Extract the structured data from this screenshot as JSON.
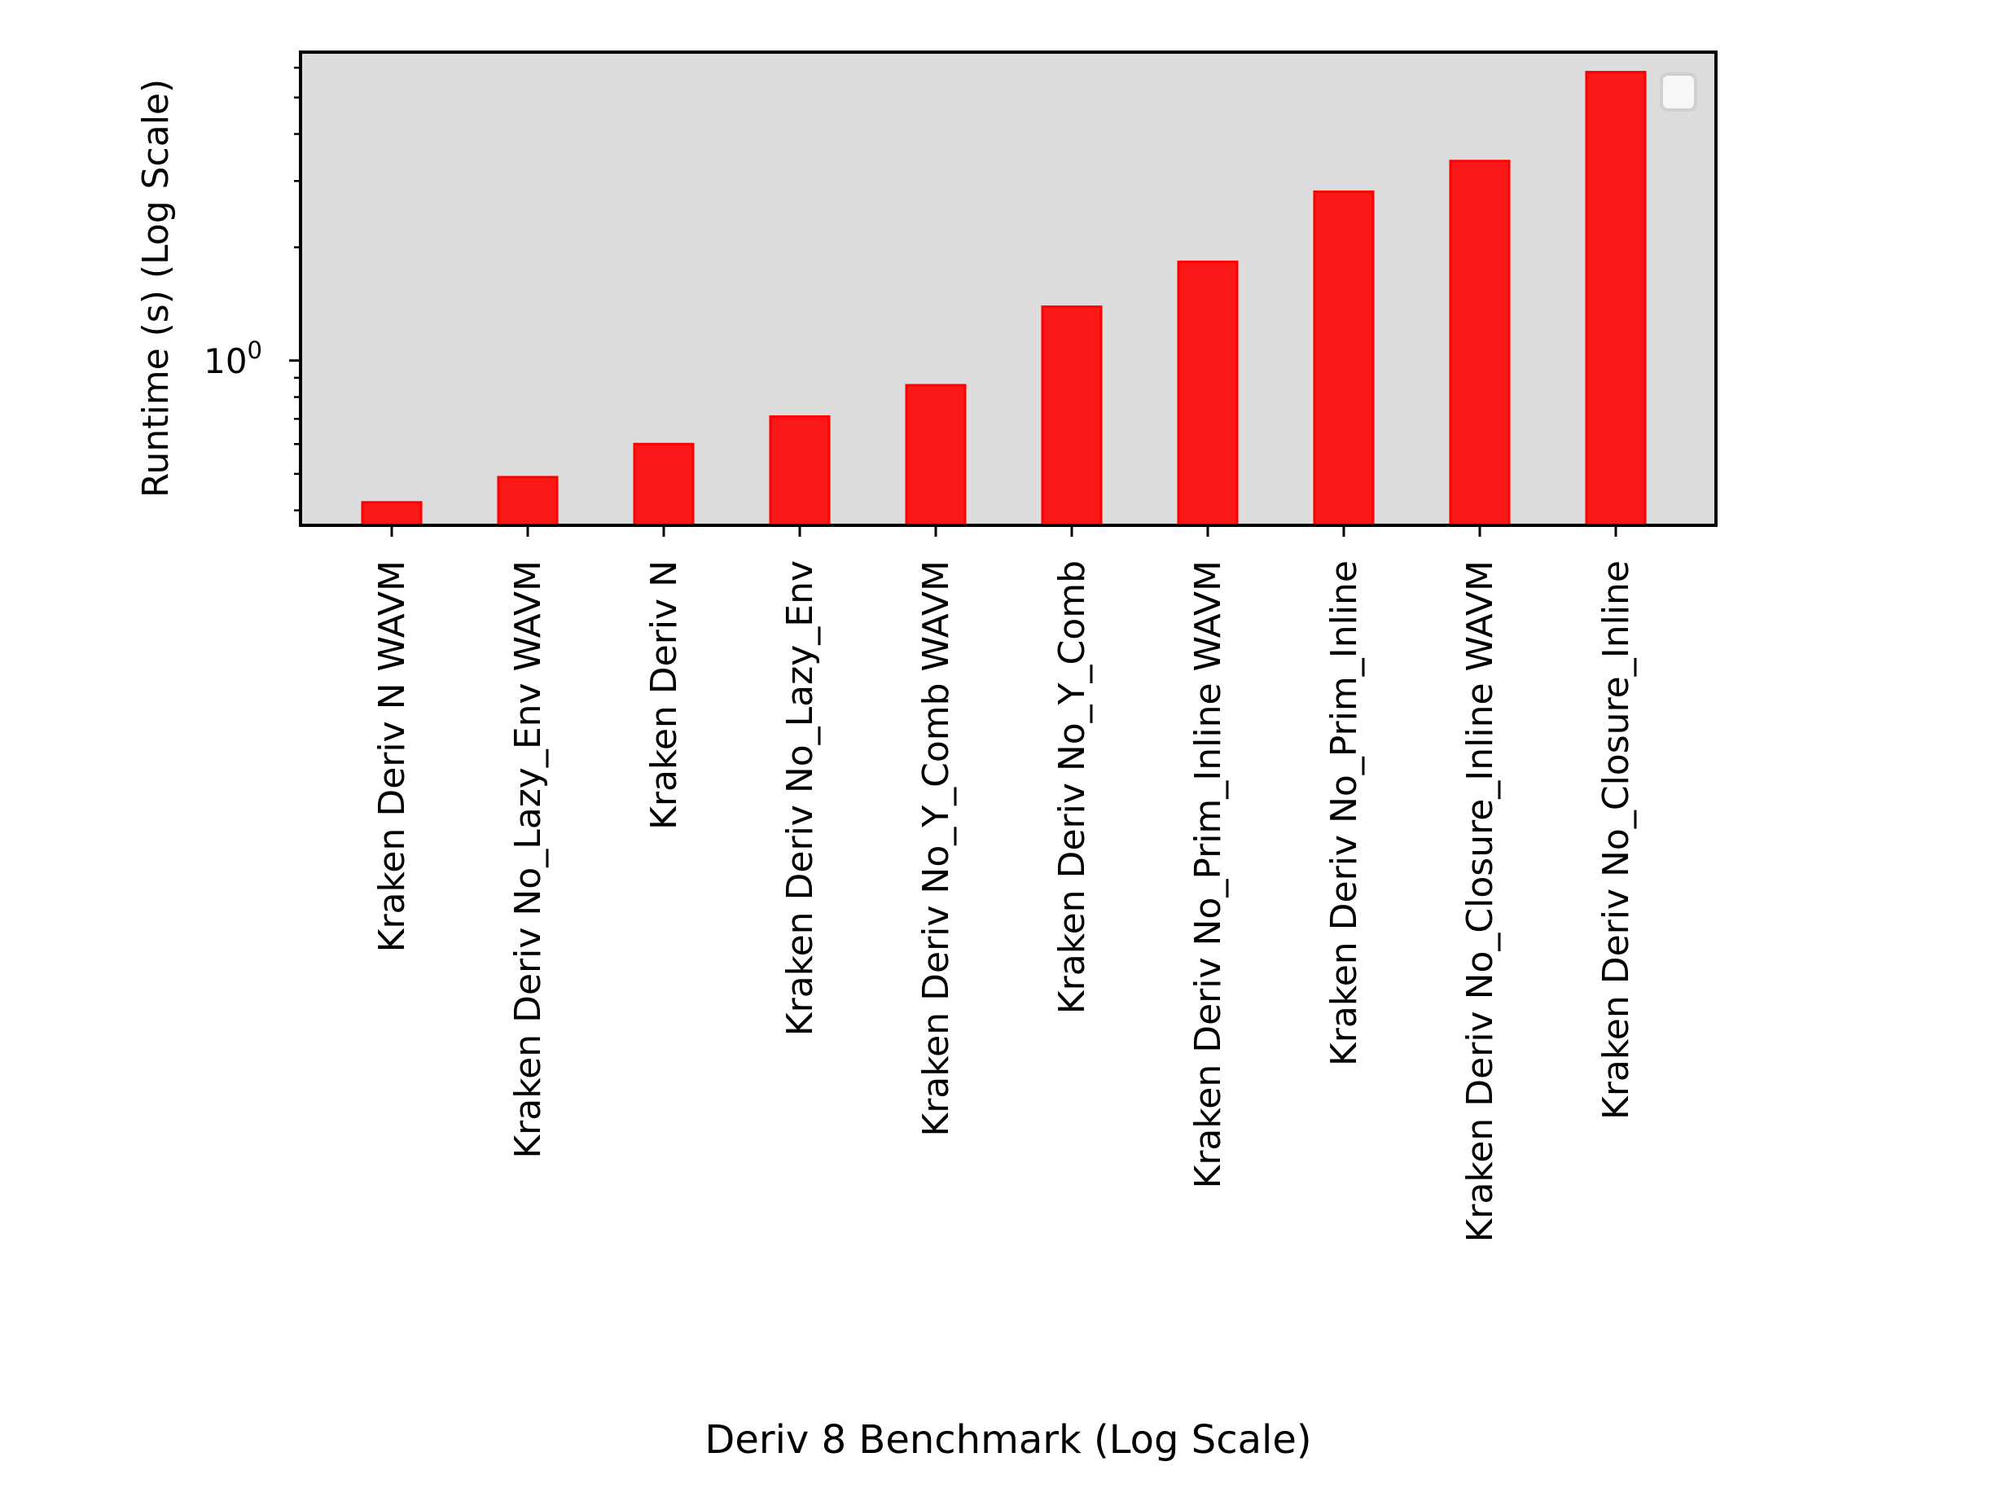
{
  "chart_data": {
    "type": "bar",
    "title": "",
    "xlabel": "Deriv 8 Benchmark (Log Scale)",
    "ylabel": "Runtime (s) (Log Scale)",
    "yscale": "log",
    "ylim": [
      0.365,
      6.6
    ],
    "ytick_major": [
      {
        "value": 1,
        "base": "10",
        "exp": "0"
      }
    ],
    "ytick_minor": [
      0.4,
      0.5,
      0.6,
      0.7,
      0.8,
      0.9,
      2,
      3,
      4,
      5,
      6
    ],
    "grid": false,
    "legend": {
      "placement": "upper-right",
      "entries": []
    },
    "colors": {
      "bar_fill": "#fa1818",
      "bar_edge": "#ff0000",
      "axes_bg": "#dcdcdc"
    },
    "categories": [
      "Kraken Deriv N WAVM",
      "Kraken Deriv No_Lazy_Env WAVM",
      "Kraken Deriv N",
      "Kraken Deriv No_Lazy_Env",
      "Kraken Deriv No_Y_Comb WAVM",
      "Kraken Deriv No_Y_Comb",
      "Kraken Deriv No_Prim_Inline WAVM",
      "Kraken Deriv No_Prim_Inline",
      "Kraken Deriv No_Closure_Inline WAVM",
      "Kraken Deriv No_Closure_Inline"
    ],
    "values": [
      0.42,
      0.49,
      0.6,
      0.71,
      0.86,
      1.39,
      1.83,
      2.81,
      3.39,
      5.84
    ]
  }
}
